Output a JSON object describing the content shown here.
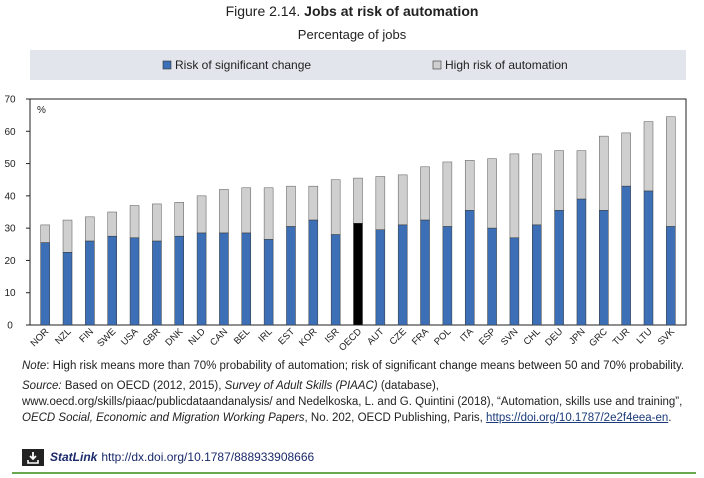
{
  "figure": {
    "number": "Figure 2.14.",
    "title": "Jobs at risk of automation",
    "subtitle": "Percentage of jobs"
  },
  "notes": {
    "note_label": "Note",
    "note_text": ": High risk means more than 70% probability of automation; risk of significant change means between 50 and 70% probability.",
    "source_label": "Source:",
    "source_part1": " Based on OECD (2012, 2015), ",
    "source_survey": "Survey of Adult Skills (PIAAC)",
    "source_part2": " (database), www.oecd.org/skills/piaac/publicdataandanalysis/ and Nedelkoska, L. and G. Quintini (2018), “Automation, skills use and training”, ",
    "source_series": "OECD Social, Economic and Migration Working Papers",
    "source_part3": ", No. 202, OECD Publishing, Paris, ",
    "source_doi": "https://doi.org/10.1787/2e2f4eea-en",
    "source_end": "."
  },
  "statlink": {
    "label": "StatLink",
    "url": "http://dx.doi.org/10.1787/888933908666"
  },
  "colors": {
    "significant": "#3c6fb6",
    "high": "#cfcfcf",
    "oecd": "#000000",
    "legend_bg": "#e2e5ec",
    "bottom_rule": "#6aa84f"
  },
  "chart_data": {
    "type": "bar",
    "stacked": true,
    "ylabel": "%",
    "ylim": [
      0,
      70
    ],
    "yticks": [
      0,
      10,
      20,
      30,
      40,
      50,
      60,
      70
    ],
    "grid": false,
    "legend_position": "top",
    "highlight_category": "OECD",
    "categories": [
      "NOR",
      "NZL",
      "FIN",
      "SWE",
      "USA",
      "GBR",
      "DNK",
      "NLD",
      "CAN",
      "BEL",
      "IRL",
      "EST",
      "KOR",
      "ISR",
      "OECD",
      "AUT",
      "CZE",
      "FRA",
      "POL",
      "ITA",
      "ESP",
      "SVN",
      "CHL",
      "DEU",
      "JPN",
      "GRC",
      "TUR",
      "LTU",
      "SVK"
    ],
    "series": [
      {
        "name": "Risk of significant change",
        "values": [
          25.5,
          22.5,
          26,
          27.5,
          27,
          26,
          27.5,
          28.5,
          28.5,
          28.5,
          26.5,
          30.5,
          32.5,
          28,
          31.5,
          29.5,
          31,
          32.5,
          30.5,
          35.5,
          30,
          27,
          31,
          35.5,
          39,
          35.5,
          43,
          41.5,
          30.5
        ]
      },
      {
        "name": "High risk of automation",
        "values": [
          5.5,
          10,
          7.5,
          7.5,
          10,
          11.5,
          10.5,
          11.5,
          13.5,
          14,
          16,
          12.5,
          10.5,
          17,
          14,
          16.5,
          15.5,
          16.5,
          20,
          15.5,
          21.5,
          26,
          22,
          18.5,
          15,
          23,
          16.5,
          21.5,
          34
        ]
      }
    ]
  }
}
